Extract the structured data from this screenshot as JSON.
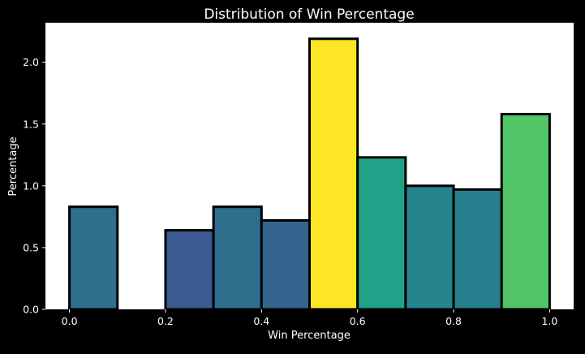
{
  "chart_data": {
    "type": "bar",
    "title": "Distribution of Win Percentage",
    "xlabel": "Win Percentage",
    "ylabel": "Percentage",
    "xlim": [
      -0.05,
      1.05
    ],
    "ylim": [
      0,
      2.32
    ],
    "x_ticks": [
      0.0,
      0.2,
      0.4,
      0.6,
      0.8,
      1.0
    ],
    "x_tick_labels": [
      "0.0",
      "0.2",
      "0.4",
      "0.6",
      "0.8",
      "1.0"
    ],
    "y_ticks": [
      0.0,
      0.5,
      1.0,
      1.5,
      2.0
    ],
    "y_tick_labels": [
      "0.0",
      "0.5",
      "1.0",
      "1.5",
      "2.0"
    ],
    "grid": false,
    "colormap": "viridis",
    "bins": [
      {
        "x0": 0.0,
        "x1": 0.1,
        "value": 0.83,
        "color": "#2e6f8e"
      },
      {
        "x0": 0.1,
        "x1": 0.2,
        "value": 0.0,
        "color": "#440154"
      },
      {
        "x0": 0.2,
        "x1": 0.3,
        "value": 0.64,
        "color": "#3b5a91"
      },
      {
        "x0": 0.3,
        "x1": 0.4,
        "value": 0.83,
        "color": "#2e6f8e"
      },
      {
        "x0": 0.4,
        "x1": 0.5,
        "value": 0.72,
        "color": "#34648e"
      },
      {
        "x0": 0.5,
        "x1": 0.6,
        "value": 2.19,
        "color": "#fde725"
      },
      {
        "x0": 0.6,
        "x1": 0.7,
        "value": 1.23,
        "color": "#21a188"
      },
      {
        "x0": 0.7,
        "x1": 0.8,
        "value": 1.0,
        "color": "#25848e"
      },
      {
        "x0": 0.8,
        "x1": 0.9,
        "value": 0.97,
        "color": "#277f8e"
      },
      {
        "x0": 0.9,
        "x1": 1.0,
        "value": 1.58,
        "color": "#52c569"
      }
    ]
  }
}
